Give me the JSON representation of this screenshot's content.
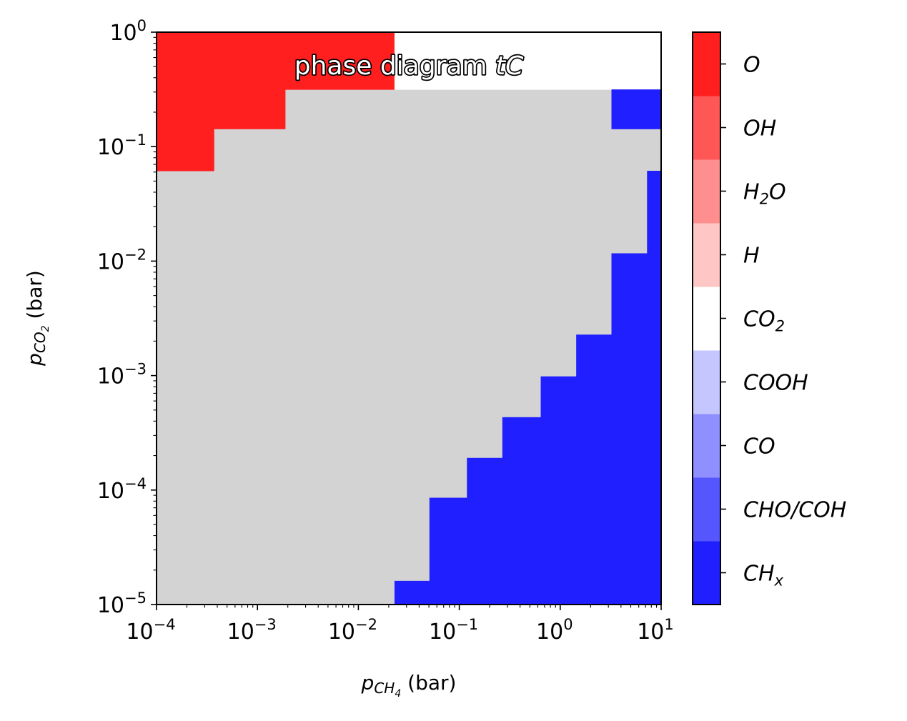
{
  "chart_data": {
    "type": "heatmap",
    "title": "phase diagram",
    "title_italic": "tC",
    "xlabel": {
      "symbol": "p",
      "sub_main": "CH",
      "sub_sub": "4",
      "unit": " (bar)"
    },
    "ylabel": {
      "symbol": "p",
      "sub_main": "CO",
      "sub_sub": "2",
      "unit": " (bar)"
    },
    "x_scale": "log",
    "y_scale": "log",
    "xlim": [
      0.0001,
      10
    ],
    "ylim": [
      1e-05,
      1
    ],
    "x_ticks": [
      {
        "base": "10",
        "exp": "−4"
      },
      {
        "base": "10",
        "exp": "−3"
      },
      {
        "base": "10",
        "exp": "−2"
      },
      {
        "base": "10",
        "exp": "−1"
      },
      {
        "base": "10",
        "exp": "0"
      },
      {
        "base": "10",
        "exp": "1"
      }
    ],
    "y_ticks": [
      {
        "base": "10",
        "exp": "−5"
      },
      {
        "base": "10",
        "exp": "−4"
      },
      {
        "base": "10",
        "exp": "−3"
      },
      {
        "base": "10",
        "exp": "−2"
      },
      {
        "base": "10",
        "exp": "−1"
      },
      {
        "base": "10",
        "exp": "0"
      }
    ],
    "grid": false,
    "background_phase_color": "#d3d3d3",
    "regions": [
      {
        "phase": "O",
        "color": "#ff1f1f",
        "x_range": [
          0.0001,
          0.0228
        ],
        "y_range": [
          0.316,
          1
        ]
      },
      {
        "phase": "O",
        "color": "#ff1f1f",
        "x_range": [
          0.0001,
          0.00188
        ],
        "y_range": [
          0.143,
          0.316
        ]
      },
      {
        "phase": "O",
        "color": "#ff1f1f",
        "x_range": [
          0.0001,
          0.00037
        ],
        "y_range": [
          0.0615,
          0.143
        ]
      },
      {
        "phase": "CO2",
        "color": "#ffffff",
        "x_range": [
          0.0228,
          10
        ],
        "y_range": [
          0.316,
          1
        ]
      },
      {
        "phase": "CHx",
        "color": "#1f1fff",
        "x_range": [
          3.22,
          10
        ],
        "y_range": [
          0.143,
          0.316
        ]
      },
      {
        "phase": "CHx",
        "color": "#1f1fff",
        "x_range": [
          7.25,
          10
        ],
        "y_range": [
          0.0117,
          0.0615
        ]
      },
      {
        "phase": "CHx",
        "color": "#1f1fff",
        "x_range": [
          3.22,
          10
        ],
        "y_range": [
          0.00228,
          0.0117
        ]
      },
      {
        "phase": "CHx",
        "color": "#1f1fff",
        "x_range": [
          1.44,
          10
        ],
        "y_range": [
          0.000984,
          0.00228
        ]
      },
      {
        "phase": "CHx",
        "color": "#1f1fff",
        "x_range": [
          0.641,
          10
        ],
        "y_range": [
          0.000433,
          0.000984
        ]
      },
      {
        "phase": "CHx",
        "color": "#1f1fff",
        "x_range": [
          0.267,
          10
        ],
        "y_range": [
          0.000191,
          0.000433
        ]
      },
      {
        "phase": "CHx",
        "color": "#1f1fff",
        "x_range": [
          0.119,
          10
        ],
        "y_range": [
          8.57e-05,
          0.000191
        ]
      },
      {
        "phase": "CHx",
        "color": "#1f1fff",
        "x_range": [
          0.0506,
          10
        ],
        "y_range": [
          1.61e-05,
          8.57e-05
        ]
      },
      {
        "phase": "CHx",
        "color": "#1f1fff",
        "x_range": [
          0.0228,
          10
        ],
        "y_range": [
          1e-05,
          1.61e-05
        ]
      }
    ],
    "colorbar": [
      {
        "name": "CHx",
        "color": "#1f1fff",
        "label": {
          "main": "CH",
          "sub": "x",
          "rest": ""
        }
      },
      {
        "name": "CHO/COH",
        "color": "#5656ff",
        "label": {
          "main": "CHO/COH",
          "sub": "",
          "rest": ""
        }
      },
      {
        "name": "CO",
        "color": "#8f8fff",
        "label": {
          "main": "CO",
          "sub": "",
          "rest": ""
        }
      },
      {
        "name": "COOH",
        "color": "#c6c6ff",
        "label": {
          "main": "COOH",
          "sub": "",
          "rest": ""
        }
      },
      {
        "name": "CO2",
        "color": "#ffffff",
        "label": {
          "main": "CO",
          "sub": "2",
          "rest": ""
        }
      },
      {
        "name": "H",
        "color": "#ffc6c6",
        "label": {
          "main": "H",
          "sub": "",
          "rest": ""
        }
      },
      {
        "name": "H2O",
        "color": "#ff8f8f",
        "label": {
          "main": "H",
          "sub": "2",
          "rest": "O"
        }
      },
      {
        "name": "OH",
        "color": "#ff5656",
        "label": {
          "main": "OH",
          "sub": "",
          "rest": ""
        }
      },
      {
        "name": "O",
        "color": "#ff1f1f",
        "label": {
          "main": "O",
          "sub": "",
          "rest": ""
        }
      }
    ]
  }
}
